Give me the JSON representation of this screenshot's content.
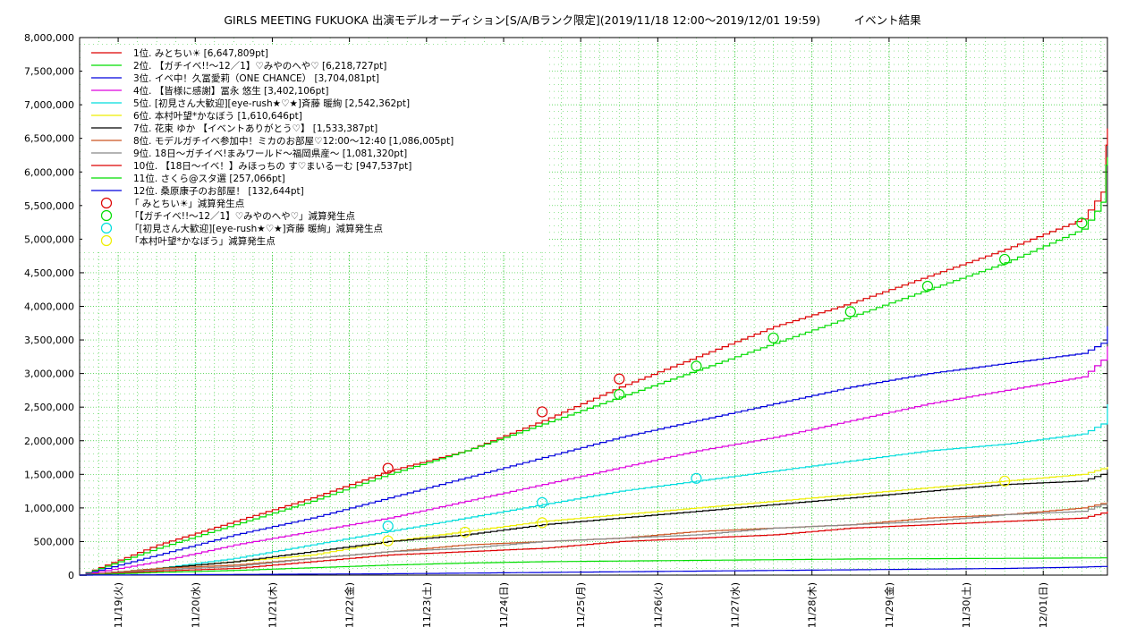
{
  "chart_data": {
    "type": "line",
    "title": "GIRLS MEETING FUKUOKA 出演モデルオーディション[S/A/Bランク限定](2019/11/18 12:00〜2019/12/01 19:59)　　　イベント結果",
    "xlabel": "",
    "ylabel": "",
    "x_range": [
      "2019/11/18 12:00",
      "2019/12/01 19:59"
    ],
    "x_ticks": [
      "11/19(火)",
      "11/20(水)",
      "11/21(木)",
      "11/22(金)",
      "11/23(土)",
      "11/24(日)",
      "11/25(月)",
      "11/26(火)",
      "11/27(水)",
      "11/28(木)",
      "11/29(金)",
      "11/30(土)",
      "12/01(日)"
    ],
    "y_ticks": [
      "0",
      "500,000",
      "1,000,000",
      "1,500,000",
      "2,000,000",
      "2,500,000",
      "3,000,000",
      "3,500,000",
      "4,000,000",
      "4,500,000",
      "5,000,000",
      "5,500,000",
      "6,000,000",
      "6,500,000",
      "7,000,000",
      "7,500,000",
      "8,000,000"
    ],
    "ylim": [
      0,
      8000000
    ],
    "grid": true,
    "legend_position": "top-left",
    "series": [
      {
        "name": "1位. みとちい☀ [6,647,809pt]",
        "color": "#dd0000",
        "x": [
          "2019/11/18 12:00",
          "2019/11/19 12:00",
          "2019/11/20 12:00",
          "2019/11/21 12:00",
          "2019/11/22 12:00",
          "2019/11/23 12:00",
          "2019/11/24 12:00",
          "2019/11/25 12:00",
          "2019/11/26 12:00",
          "2019/11/27 12:00",
          "2019/11/28 12:00",
          "2019/11/29 12:00",
          "2019/11/30 12:00",
          "2019/12/01 12:00",
          "2019/12/01 18:00",
          "2019/12/01 19:30",
          "2019/12/01 19:59"
        ],
        "y": [
          0,
          450000,
          800000,
          1150000,
          1550000,
          1850000,
          2300000,
          2800000,
          3250000,
          3700000,
          4050000,
          4450000,
          4850000,
          5300000,
          5700000,
          6400000,
          6647809
        ]
      },
      {
        "name": "2位. 【ガチイベ!!〜12／1】♡みやのへや♡ [6,218,727pt]",
        "color": "#00dd00",
        "x": [
          "2019/11/18 12:00",
          "2019/11/19 12:00",
          "2019/11/20 12:00",
          "2019/11/21 12:00",
          "2019/11/22 12:00",
          "2019/11/23 12:00",
          "2019/11/24 12:00",
          "2019/11/25 12:00",
          "2019/11/26 12:00",
          "2019/11/27 12:00",
          "2019/11/28 12:00",
          "2019/11/29 12:00",
          "2019/11/30 12:00",
          "2019/12/01 12:00",
          "2019/12/01 18:00",
          "2019/12/01 19:30",
          "2019/12/01 19:59"
        ],
        "y": [
          0,
          400000,
          750000,
          1100000,
          1500000,
          1850000,
          2250000,
          2650000,
          3050000,
          3450000,
          3850000,
          4250000,
          4650000,
          5150000,
          5550000,
          6100000,
          6218727
        ]
      },
      {
        "name": "3位. イベ中！久冨愛莉（ONE CHANCE） [3,704,081pt]",
        "color": "#0000dd",
        "x": [
          "2019/11/18 12:00",
          "2019/11/19 12:00",
          "2019/11/20 12:00",
          "2019/11/21 12:00",
          "2019/11/22 12:00",
          "2019/11/23 12:00",
          "2019/11/24 12:00",
          "2019/11/25 12:00",
          "2019/11/26 12:00",
          "2019/11/27 12:00",
          "2019/11/28 12:00",
          "2019/11/29 12:00",
          "2019/11/30 12:00",
          "2019/12/01 12:00",
          "2019/12/01 18:00",
          "2019/12/01 19:59"
        ],
        "y": [
          0,
          300000,
          600000,
          850000,
          1150000,
          1450000,
          1750000,
          2050000,
          2300000,
          2550000,
          2800000,
          3000000,
          3150000,
          3300000,
          3450000,
          3704081
        ]
      },
      {
        "name": "4位. 【皆様に感謝】冨永 悠生 [3,402,106pt]",
        "color": "#dd00dd",
        "x": [
          "2019/11/18 12:00",
          "2019/11/19 12:00",
          "2019/11/20 12:00",
          "2019/11/21 12:00",
          "2019/11/22 12:00",
          "2019/11/23 12:00",
          "2019/11/24 12:00",
          "2019/11/25 12:00",
          "2019/11/26 12:00",
          "2019/11/27 12:00",
          "2019/11/28 12:00",
          "2019/11/29 12:00",
          "2019/11/30 12:00",
          "2019/12/01 12:00",
          "2019/12/01 18:00",
          "2019/12/01 19:59"
        ],
        "y": [
          0,
          200000,
          450000,
          650000,
          850000,
          1100000,
          1350000,
          1600000,
          1850000,
          2050000,
          2300000,
          2550000,
          2750000,
          2950000,
          3200000,
          3402106
        ]
      },
      {
        "name": "5位. [初見さん大歓迎][eye-rush★♡★]斉藤 暖絢 [2,542,362pt]",
        "color": "#00dddd",
        "x": [
          "2019/11/18 12:00",
          "2019/11/19 12:00",
          "2019/11/20 12:00",
          "2019/11/21 12:00",
          "2019/11/22 12:00",
          "2019/11/23 12:00",
          "2019/11/24 12:00",
          "2019/11/25 12:00",
          "2019/11/26 12:00",
          "2019/11/27 12:00",
          "2019/11/28 12:00",
          "2019/11/29 12:00",
          "2019/11/30 12:00",
          "2019/12/01 12:00",
          "2019/12/01 18:00",
          "2019/12/01 19:59"
        ],
        "y": [
          0,
          100000,
          250000,
          450000,
          650000,
          850000,
          1050000,
          1250000,
          1400000,
          1550000,
          1700000,
          1850000,
          1950000,
          2100000,
          2250000,
          2542362
        ]
      },
      {
        "name": "6位. 本村叶望*かなぼう [1,610,646pt]",
        "color": "#eeee00",
        "x": [
          "2019/11/18 12:00",
          "2019/11/19 12:00",
          "2019/11/20 12:00",
          "2019/11/21 12:00",
          "2019/11/22 12:00",
          "2019/11/23 12:00",
          "2019/11/24 12:00",
          "2019/11/25 12:00",
          "2019/11/26 12:00",
          "2019/11/27 12:00",
          "2019/11/28 12:00",
          "2019/11/29 12:00",
          "2019/11/30 12:00",
          "2019/12/01 12:00",
          "2019/12/01 19:59"
        ],
        "y": [
          0,
          100000,
          200000,
          300000,
          500000,
          650000,
          800000,
          900000,
          1000000,
          1100000,
          1200000,
          1300000,
          1400000,
          1500000,
          1610646
        ]
      },
      {
        "name": "7位. 花束 ゆか 【イベントありがとう♡】 [1,533,387pt]",
        "color": "#000000",
        "x": [
          "2019/11/18 12:00",
          "2019/11/19 12:00",
          "2019/11/20 12:00",
          "2019/11/21 12:00",
          "2019/11/22 12:00",
          "2019/11/23 12:00",
          "2019/11/24 12:00",
          "2019/11/25 12:00",
          "2019/11/26 12:00",
          "2019/11/27 12:00",
          "2019/11/28 12:00",
          "2019/11/29 12:00",
          "2019/11/30 12:00",
          "2019/12/01 12:00",
          "2019/12/01 19:59"
        ],
        "y": [
          0,
          100000,
          200000,
          350000,
          500000,
          600000,
          750000,
          850000,
          950000,
          1050000,
          1150000,
          1250000,
          1350000,
          1400000,
          1533387
        ]
      },
      {
        "name": "8位. モデルガチイベ参加中！ミカのお部屋♡12:00〜12:40 [1,086,005pt]",
        "color": "#cc5522",
        "x": [
          "2019/11/18 12:00",
          "2019/11/19 12:00",
          "2019/11/20 12:00",
          "2019/11/21 12:00",
          "2019/11/22 12:00",
          "2019/11/23 12:00",
          "2019/11/24 12:00",
          "2019/11/25 12:00",
          "2019/11/26 12:00",
          "2019/11/27 12:00",
          "2019/11/28 12:00",
          "2019/11/29 12:00",
          "2019/11/30 12:00",
          "2019/12/01 12:00",
          "2019/12/01 19:59"
        ],
        "y": [
          0,
          100000,
          150000,
          250000,
          350000,
          450000,
          500000,
          550000,
          650000,
          700000,
          750000,
          850000,
          900000,
          1000000,
          1086005
        ]
      },
      {
        "name": "9位. 18日〜ガチイベ!まみワールド〜福岡県産〜 [1,081,320pt]",
        "color": "#888888",
        "x": [
          "2019/11/18 12:00",
          "2019/11/19 12:00",
          "2019/11/20 12:00",
          "2019/11/21 12:00",
          "2019/11/22 12:00",
          "2019/11/23 12:00",
          "2019/11/24 12:00",
          "2019/11/25 12:00",
          "2019/11/26 12:00",
          "2019/11/27 12:00",
          "2019/11/28 12:00",
          "2019/11/29 12:00",
          "2019/11/30 12:00",
          "2019/12/01 12:00",
          "2019/12/01 19:59"
        ],
        "y": [
          0,
          80000,
          130000,
          250000,
          350000,
          400000,
          500000,
          550000,
          600000,
          700000,
          750000,
          800000,
          900000,
          950000,
          1081320
        ]
      },
      {
        "name": "10位. 【18日〜イベ！】みほっちの す♡まいるーむ [947,537pt]",
        "color": "#dd0000",
        "x": [
          "2019/11/18 12:00",
          "2019/11/19 12:00",
          "2019/11/20 12:00",
          "2019/11/21 12:00",
          "2019/11/22 12:00",
          "2019/11/23 12:00",
          "2019/11/24 12:00",
          "2019/11/25 12:00",
          "2019/11/26 12:00",
          "2019/11/27 12:00",
          "2019/11/28 12:00",
          "2019/11/29 12:00",
          "2019/11/30 12:00",
          "2019/12/01 12:00",
          "2019/12/01 19:59"
        ],
        "y": [
          0,
          60000,
          100000,
          200000,
          300000,
          350000,
          400000,
          500000,
          550000,
          600000,
          700000,
          750000,
          800000,
          850000,
          947537
        ]
      },
      {
        "name": "11位. さくら@スタ選 [257,066pt]",
        "color": "#00dd00",
        "x": [
          "2019/11/18 12:00",
          "2019/11/19 12:00",
          "2019/11/20 12:00",
          "2019/11/21 12:00",
          "2019/11/22 12:00",
          "2019/11/23 12:00",
          "2019/11/24 12:00",
          "2019/11/25 12:00",
          "2019/11/26 12:00",
          "2019/11/27 12:00",
          "2019/11/28 12:00",
          "2019/11/29 12:00",
          "2019/11/30 12:00",
          "2019/12/01 12:00",
          "2019/12/01 19:59"
        ],
        "y": [
          0,
          40000,
          70000,
          110000,
          150000,
          180000,
          200000,
          210000,
          220000,
          230000,
          240000,
          245000,
          250000,
          255000,
          257066
        ]
      },
      {
        "name": "12位. 桑原康子のお部屋！ [132,644pt]",
        "color": "#0000dd",
        "x": [
          "2019/11/18 12:00",
          "2019/11/19 12:00",
          "2019/11/20 12:00",
          "2019/11/21 12:00",
          "2019/11/22 12:00",
          "2019/11/23 12:00",
          "2019/11/24 12:00",
          "2019/11/25 12:00",
          "2019/11/26 12:00",
          "2019/11/27 12:00",
          "2019/11/28 12:00",
          "2019/11/29 12:00",
          "2019/11/30 12:00",
          "2019/12/01 12:00",
          "2019/12/01 19:59"
        ],
        "y": [
          0,
          5000,
          10000,
          15000,
          20000,
          30000,
          40000,
          50000,
          60000,
          70000,
          80000,
          90000,
          100000,
          120000,
          132644
        ]
      }
    ],
    "markers": [
      {
        "name": "「 みとちい☀」減算発生点",
        "color": "#dd0000",
        "x": [
          "2019/11/22 12:00",
          "2019/11/24 12:00",
          "2019/11/25 12:00"
        ],
        "y": [
          1590000,
          2430000,
          2920000
        ]
      },
      {
        "name": "「【ガチイベ!!〜12／1】♡みやのへや♡」減算発生点",
        "color": "#00dd00",
        "x": [
          "2019/11/25 12:00",
          "2019/11/26 12:00",
          "2019/11/27 12:00",
          "2019/11/28 12:00",
          "2019/11/29 12:00",
          "2019/11/30 12:00",
          "2019/12/01 12:00"
        ],
        "y": [
          2690000,
          3110000,
          3530000,
          3920000,
          4300000,
          4700000,
          5240000
        ]
      },
      {
        "name": "「[初見さん大歓迎][eye-rush★♡★]斉藤 暖絢」減算発生点",
        "color": "#00dddd",
        "x": [
          "2019/11/22 12:00",
          "2019/11/24 12:00",
          "2019/11/26 12:00"
        ],
        "y": [
          730000,
          1080000,
          1440000
        ]
      },
      {
        "name": "「本村叶望*かなぼう」減算発生点",
        "color": "#eeee00",
        "x": [
          "2019/11/22 12:00",
          "2019/11/23 12:00",
          "2019/11/24 12:00",
          "2019/11/30 12:00"
        ],
        "y": [
          510000,
          640000,
          780000,
          1400000
        ]
      }
    ]
  }
}
